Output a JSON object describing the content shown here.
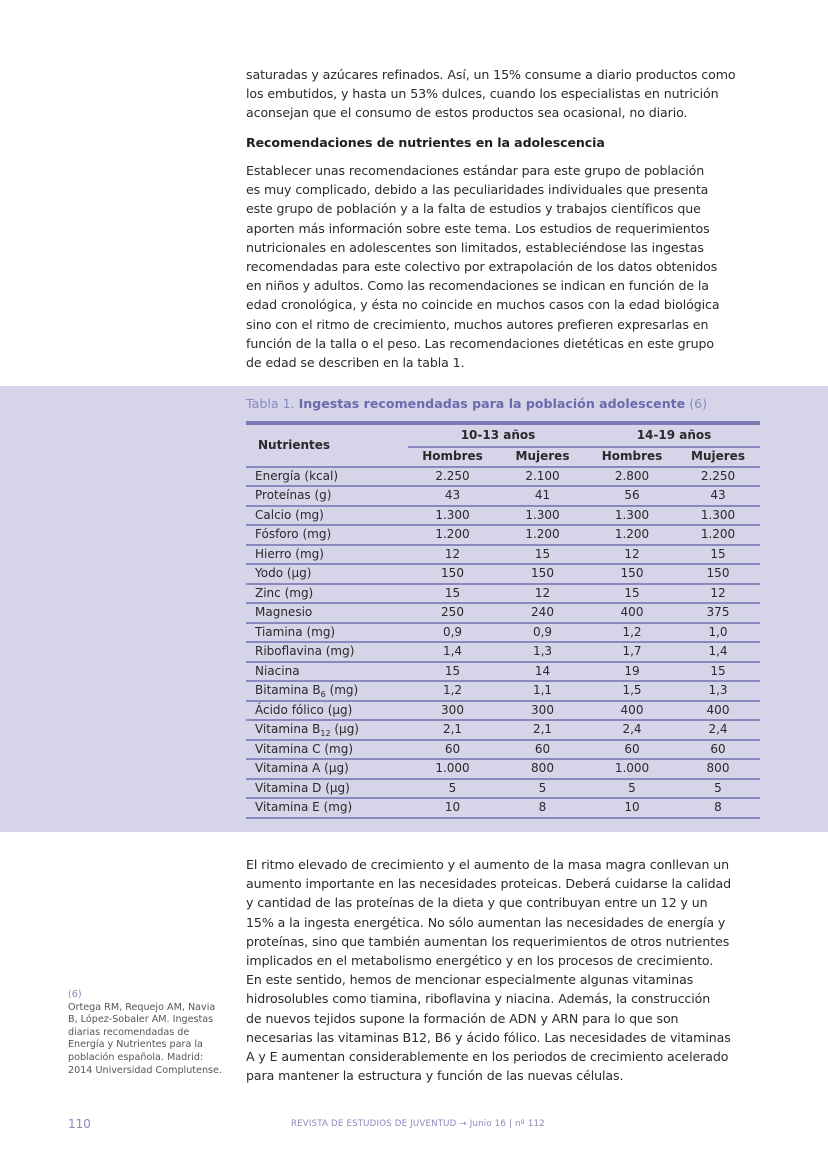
{
  "paragraph_1": [
    "saturadas y azúcares refinados. Así, un 15% consume a diario productos como",
    "los embutidos, y hasta un 53% dulces, cuando los especialistas en nutrición",
    "aconsejan que el consumo de estos productos sea ocasional, no diario."
  ],
  "heading": "Recomendaciones de nutrientes en la adolescencia",
  "paragraph_2": [
    "Establecer unas recomendaciones estándar para este grupo de población",
    "es muy complicado, debido a las peculiaridades individuales que presenta",
    "este grupo de población y a la falta de estudios y trabajos científicos que",
    "aporten más información sobre este tema. Los estudios de requerimientos",
    "nutricionales en adolescentes son limitados, estableciéndose las ingestas",
    "recomendadas para este colectivo por extrapolación de los datos obtenidos",
    "en niños y adultos. Como las recomendaciones se indican en función de la",
    "edad cronológica, y ésta no coincide en muchos casos con la edad biológica",
    "sino con el ritmo de crecimiento, muchos autores prefieren expresarlas en",
    "función de la talla o el peso. Las recomendaciones dietéticas en este grupo",
    "de edad se describen en la tabla 1."
  ],
  "table": {
    "caption_prefix": "Tabla 1.",
    "caption_title": "Ingestas recomendadas para la población adolescente",
    "caption_ref": "(6)",
    "col_nutrients": "Nutrientes",
    "groups": [
      "10-13 años",
      "14-19 años"
    ],
    "subheaders": [
      "Hombres",
      "Mujeres",
      "Hombres",
      "Mujeres"
    ],
    "rows": [
      {
        "name": "Energía (kcal)",
        "values": [
          "2.250",
          "2.100",
          "2.800",
          "2.250"
        ]
      },
      {
        "name": "Proteínas (g)",
        "values": [
          "43",
          "41",
          "56",
          "43"
        ]
      },
      {
        "name": "Calcio (mg)",
        "values": [
          "1.300",
          "1.300",
          "1.300",
          "1.300"
        ]
      },
      {
        "name": "Fósforo (mg)",
        "values": [
          "1.200",
          "1.200",
          "1.200",
          "1.200"
        ]
      },
      {
        "name": "Hierro (mg)",
        "values": [
          "12",
          "15",
          "12",
          "15"
        ]
      },
      {
        "name": "Yodo (µg)",
        "values": [
          "150",
          "150",
          "150",
          "150"
        ]
      },
      {
        "name": "Zinc (mg)",
        "values": [
          "15",
          "12",
          "15",
          "12"
        ]
      },
      {
        "name": "Magnesio",
        "values": [
          "250",
          "240",
          "400",
          "375"
        ]
      },
      {
        "name": "Tiamina (mg)",
        "values": [
          "0,9",
          "0,9",
          "1,2",
          "1,0"
        ]
      },
      {
        "name": "Riboflavina (mg)",
        "values": [
          "1,4",
          "1,3",
          "1,7",
          "1,4"
        ]
      },
      {
        "name": "Niacina",
        "values": [
          "15",
          "14",
          "19",
          "15"
        ]
      },
      {
        "name": "Bitamina B",
        "sub": "6",
        "post": " (mg)",
        "values": [
          "1,2",
          "1,1",
          "1,5",
          "1,3"
        ]
      },
      {
        "name": "Ácido fólico (µg)",
        "values": [
          "300",
          "300",
          "400",
          "400"
        ]
      },
      {
        "name": "Vitamina B",
        "sub": "12",
        "post": " (µg)",
        "values": [
          "2,1",
          "2,1",
          "2,4",
          "2,4"
        ]
      },
      {
        "name": "Vitamina C (mg)",
        "values": [
          "60",
          "60",
          "60",
          "60"
        ]
      },
      {
        "name": "Vitamina A (µg)",
        "values": [
          "1.000",
          "800",
          "1.000",
          "800"
        ]
      },
      {
        "name": "Vitamina D (µg)",
        "values": [
          "5",
          "5",
          "5",
          "5"
        ]
      },
      {
        "name": "Vitamina E (mg)",
        "values": [
          "10",
          "8",
          "10",
          "8"
        ]
      }
    ]
  },
  "paragraph_3": [
    "El ritmo elevado de crecimiento y el aumento de la masa magra conllevan un",
    "aumento importante en las necesidades proteicas. Deberá cuidarse la calidad",
    "y cantidad de las proteínas de la dieta y que contribuyan entre un 12 y un",
    "15% a la ingesta energética. No sólo aumentan las necesidades de energía y",
    "proteínas, sino que también aumentan los requerimientos de otros nutrientes",
    "implicados en el metabolismo energético y en los procesos de crecimiento.",
    "En este sentido, hemos de mencionar especialmente algunas vitaminas",
    "hidrosolubles como tiamina, riboflavina y niacina. Además, la construcción",
    "de nuevos tejidos supone la formación de ADN y ARN para lo que son",
    "necesarias las vitaminas B12, B6 y ácido fólico. Las necesidades de vitaminas",
    "A y E aumentan considerablemente en los periodos de crecimiento acelerado",
    "para mantener la estructura y función de las nuevas células."
  ],
  "sidenote": {
    "ref": "(6)",
    "lines": [
      "Ortega RM, Requejo AM, Navia",
      "B, López-Sobaler AM. Ingestas",
      "diarias recomendadas de",
      "Energía y Nutrientes para la",
      "población española. Madrid:",
      "2014 Universidad Complutense."
    ]
  },
  "footer": {
    "page_number": "110",
    "running_title": "REVISTA DE ESTUDIOS DE JUVENTUD → Junio 16 | nº 112"
  },
  "colors": {
    "band": "#d5d4e8",
    "accent": "#6d69ad",
    "rule": "#7d7ab6"
  }
}
